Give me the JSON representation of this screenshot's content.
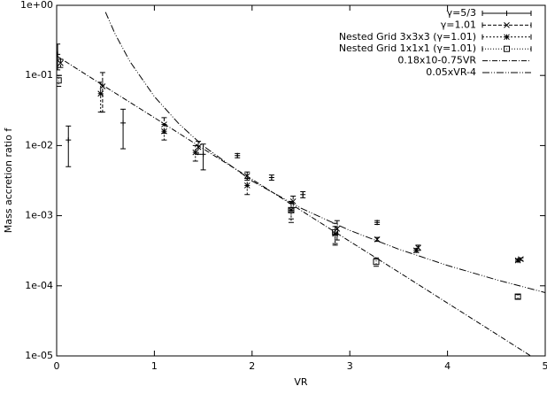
{
  "chart_data": {
    "type": "scatter",
    "xlabel": "VR",
    "ylabel": "Mass accretion ratio f",
    "xlim": [
      0,
      5
    ],
    "xticks": [
      0,
      1,
      2,
      3,
      4,
      5
    ],
    "ylim": [
      1e-05,
      1
    ],
    "log_y": true,
    "yticks": [
      {
        "value": 1,
        "label": "1e+00"
      },
      {
        "value": 0.1,
        "label": "1e-01"
      },
      {
        "value": 0.01,
        "label": "1e-02"
      },
      {
        "value": 0.001,
        "label": "1e-03"
      },
      {
        "value": 0.0001,
        "label": "1e-04"
      },
      {
        "value": 1e-05,
        "label": "1e-05"
      }
    ],
    "legend": "upper right",
    "series": [
      {
        "name": "γ=5/3",
        "color": "#000000",
        "marker": "plus",
        "x": [
          0.01,
          0.12,
          0.68,
          1.5,
          1.85,
          2.2,
          2.52,
          3.28
        ],
        "values": [
          0.2,
          0.012,
          0.021,
          0.0075,
          0.0072,
          0.0035,
          0.002,
          0.0008
        ],
        "errors": [
          0.08,
          0.007,
          0.012,
          0.003,
          0.0005,
          0.0003,
          0.0002,
          5e-05
        ]
      },
      {
        "name": "γ=1.01",
        "color": "#000000",
        "marker": "x",
        "x": [
          0.04,
          0.47,
          1.1,
          1.45,
          1.95,
          2.42,
          2.87,
          3.28,
          3.7,
          4.75
        ],
        "values": [
          0.15,
          0.07,
          0.02,
          0.0095,
          0.0037,
          0.0016,
          0.00065,
          0.00046,
          0.00035,
          0.00024
        ],
        "errors": [
          0.02,
          0.04,
          0.005,
          0.002,
          0.0005,
          0.0003,
          0.0002,
          3e-05,
          3e-05,
          1e-05
        ]
      },
      {
        "name": "Nested Grid 3x3x3 (γ=1.01)",
        "color": "#000000",
        "marker": "star",
        "x": [
          0.45,
          1.1,
          1.42,
          1.95,
          2.4,
          2.85,
          3.68,
          4.72
        ],
        "values": [
          0.055,
          0.016,
          0.008,
          0.0027,
          0.0012,
          0.00055,
          0.00032,
          0.00023
        ],
        "errors": [
          0.025,
          0.004,
          0.002,
          0.0007,
          0.0004,
          0.00015,
          2e-05,
          1e-05
        ]
      },
      {
        "name": "Nested Grid 1x1x1 (γ=1.01)",
        "color": "#000000",
        "marker": "square",
        "x": [
          0.02,
          2.4,
          2.85,
          3.27,
          4.72
        ],
        "values": [
          0.085,
          0.0012,
          0.00058,
          0.00022,
          7e-05
        ],
        "errors": [
          0.015,
          0.0003,
          0.0002,
          3e-05,
          5e-06
        ]
      },
      {
        "name": "0.18x10-0.75VR",
        "color": "#000000",
        "marker": "line",
        "x": [
          0,
          0.5,
          1,
          1.5,
          2,
          2.5,
          3,
          3.5,
          4,
          4.5,
          5
        ],
        "values": [
          0.19,
          0.0685,
          0.025,
          0.009,
          0.0033,
          0.00119,
          0.00043,
          0.000157,
          5.67e-05,
          2.05e-05,
          7.4e-06
        ]
      },
      {
        "name": "0.05xVR-4",
        "color": "#000000",
        "marker": "line",
        "x": [
          0.5,
          0.6,
          0.75,
          1,
          1.25,
          1.5,
          2,
          2.5,
          3,
          3.5,
          4,
          4.5,
          5
        ],
        "values": [
          0.8,
          0.386,
          0.158,
          0.05,
          0.0205,
          0.00988,
          0.003125,
          0.00128,
          0.000617,
          0.000333,
          0.000195,
          0.000122,
          8e-05
        ]
      }
    ]
  }
}
